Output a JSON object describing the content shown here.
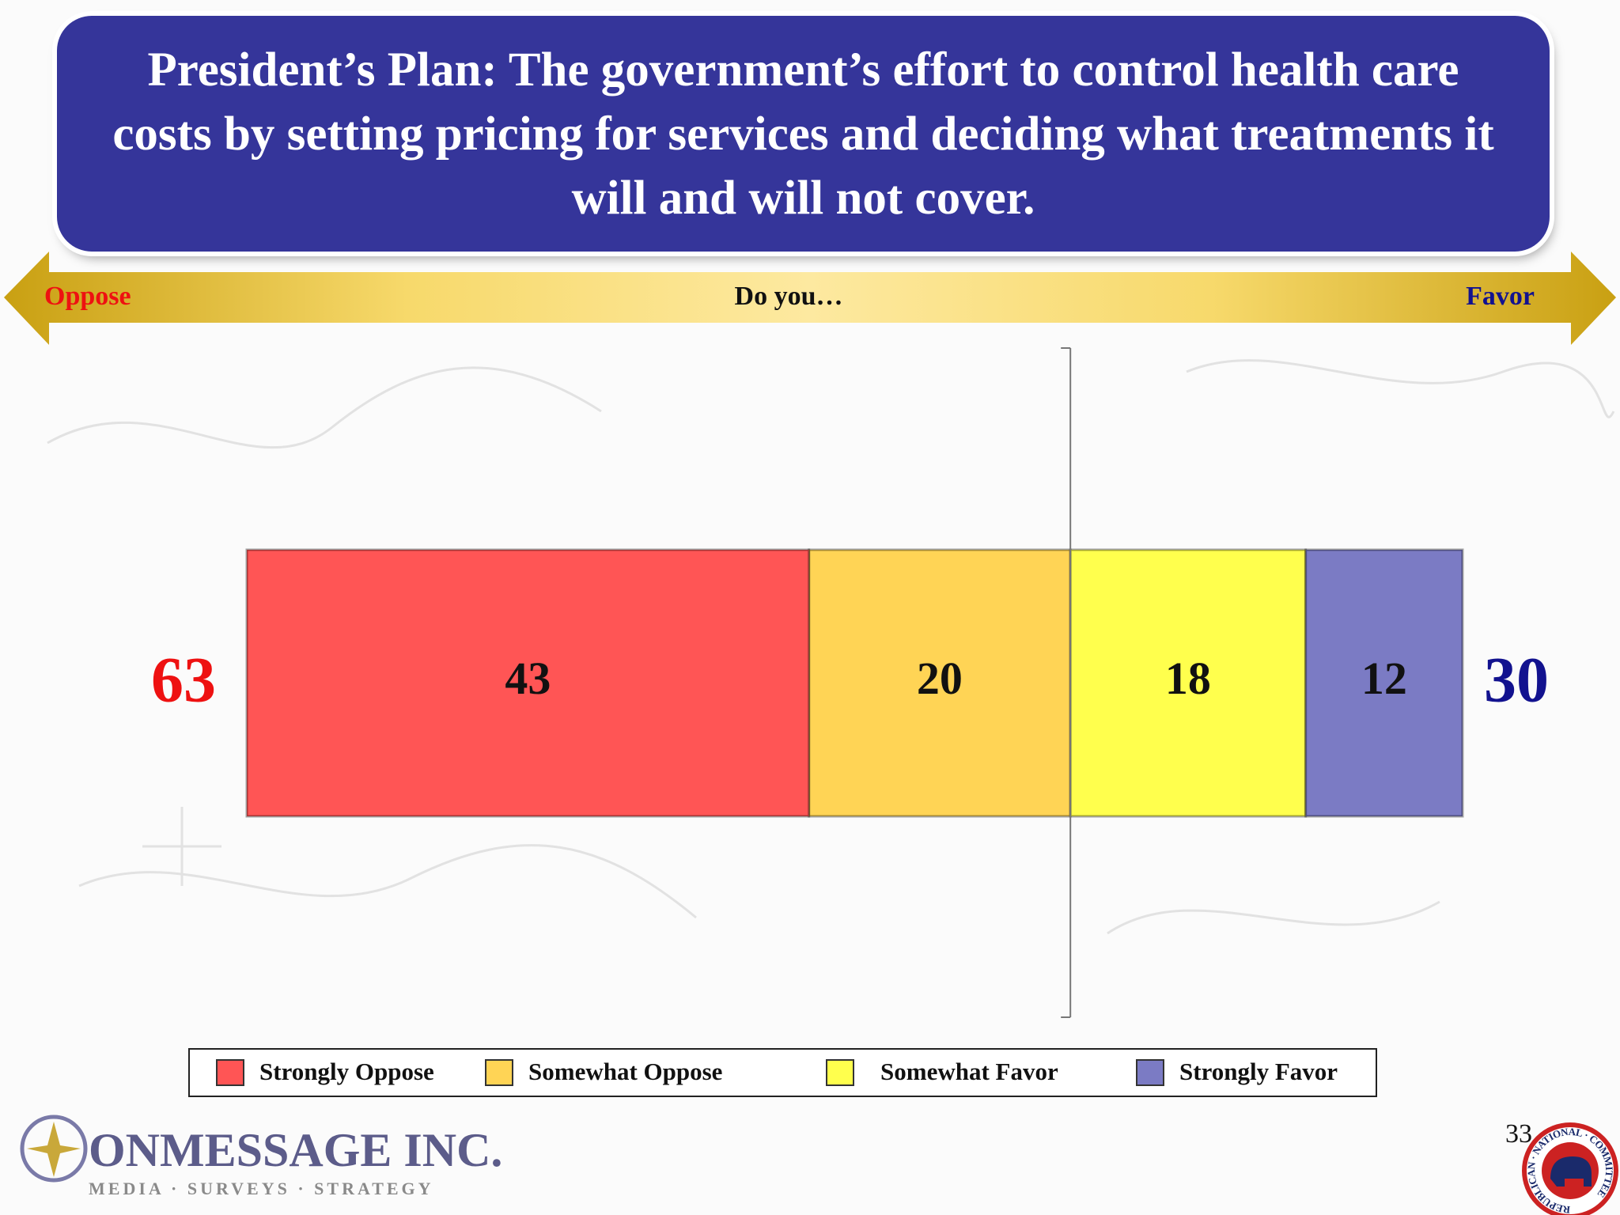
{
  "chart_data": {
    "type": "diverging_bar",
    "title": "President’s Plan: The government’s effort to control health care costs by setting pricing for services and deciding what treatments it will and will not cover.",
    "scale_labels": {
      "left": "Oppose",
      "center": "Do you…",
      "right": "Favor"
    },
    "series": [
      {
        "name": "Strongly Oppose",
        "color": "#ff5555",
        "side": "left",
        "values": [
          43
        ]
      },
      {
        "name": "Somewhat Oppose",
        "color": "#ffd455",
        "side": "left",
        "values": [
          20
        ]
      },
      {
        "name": "Somewhat Favor",
        "color": "#ffff4d",
        "side": "right",
        "values": [
          18
        ]
      },
      {
        "name": "Strongly Favor",
        "color": "#7b7bc4",
        "side": "right",
        "values": [
          12
        ]
      }
    ],
    "totals": [
      {
        "value": 63,
        "color": "#ee1111"
      },
      {
        "value": 30,
        "color": "#12128f"
      }
    ]
  },
  "footer": {
    "page_number": "33",
    "company": "ONMESSAGE INC.",
    "tagline": "MEDIA · SURVEYS · STRATEGY",
    "seal": "REPUBLICAN · NATIONAL · COMMITTEE"
  }
}
